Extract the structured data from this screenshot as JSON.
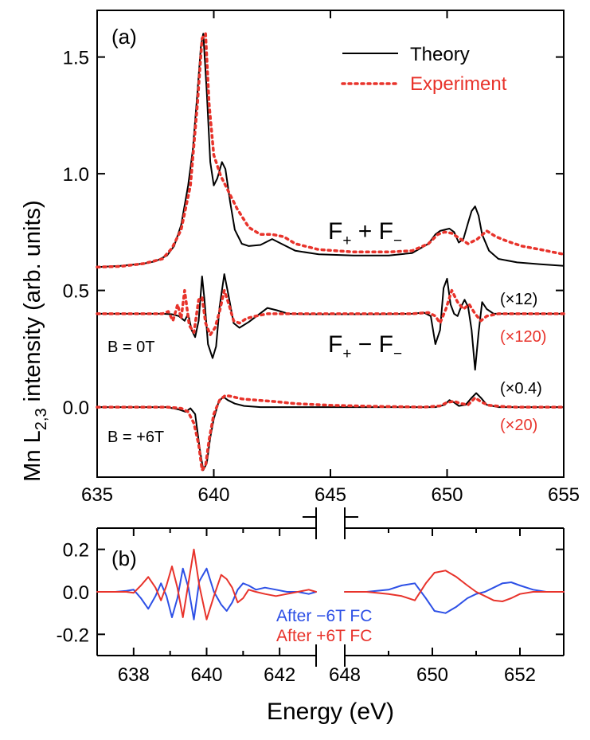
{
  "colors": {
    "theory": "#000000",
    "experiment": "#e8332b",
    "after_minus": "#2d50e6",
    "after_plus": "#e8332b",
    "axis": "#000000"
  },
  "ylabel": {
    "main": "Mn L",
    "sub": "2,3",
    "rest": " intensity (arb. units)"
  },
  "xlabel": "Energy (eV)",
  "chart_data": [
    {
      "type": "line",
      "panel_label": "(a)",
      "xlim": [
        635,
        655
      ],
      "ylim": [
        -0.3,
        1.7
      ],
      "x_ticks": [
        635,
        640,
        645,
        650,
        655
      ],
      "y_ticks": [
        0.0,
        0.5,
        1.0,
        1.5
      ],
      "y_tick_labels": [
        "0.0",
        "0.5",
        "1.0",
        "1.5"
      ],
      "legend": {
        "placement": "top-right",
        "entries": [
          {
            "name": "Theory",
            "style": "solid",
            "color": "#000000"
          },
          {
            "name": "Experiment",
            "style": "dotted",
            "color": "#e8332b"
          }
        ]
      },
      "annotations": {
        "sum_label": {
          "main": "F",
          "s1": "+",
          "op": " + F",
          "s2": "−"
        },
        "diff_label": {
          "main": "F",
          "s1": "+",
          "op": " − F",
          "s2": "−"
        },
        "b0": "B = 0T",
        "b6": "B = +6T",
        "scale_theory_0": "(×12)",
        "scale_exp_0": "(×120)",
        "scale_theory_6": "(×0.4)",
        "scale_exp_6": "(×20)"
      },
      "series": [
        {
          "group": "sum",
          "style": "theory",
          "x": [
            635.0,
            636.0,
            637.0,
            637.5,
            638.0,
            638.3,
            638.6,
            638.9,
            639.1,
            639.3,
            639.45,
            639.55,
            639.7,
            639.85,
            640.0,
            640.15,
            640.35,
            640.5,
            640.7,
            640.9,
            641.2,
            641.5,
            642.0,
            642.5,
            643.0,
            643.5,
            644.5,
            646.0,
            647.5,
            648.5,
            649.2,
            649.5,
            649.7,
            649.9,
            650.1,
            650.3,
            650.5,
            650.7,
            650.9,
            651.05,
            651.2,
            651.35,
            651.5,
            651.8,
            652.2,
            653.0,
            654.0,
            655.0
          ],
          "y": [
            0.6,
            0.605,
            0.615,
            0.625,
            0.65,
            0.69,
            0.78,
            0.95,
            1.1,
            1.35,
            1.55,
            1.6,
            1.35,
            1.05,
            0.95,
            0.98,
            1.05,
            1.02,
            0.88,
            0.76,
            0.7,
            0.69,
            0.695,
            0.72,
            0.695,
            0.67,
            0.655,
            0.65,
            0.65,
            0.66,
            0.7,
            0.74,
            0.755,
            0.76,
            0.765,
            0.75,
            0.705,
            0.72,
            0.79,
            0.84,
            0.86,
            0.82,
            0.74,
            0.67,
            0.635,
            0.62,
            0.612,
            0.605
          ]
        },
        {
          "group": "sum",
          "style": "experiment",
          "x": [
            635.0,
            636.0,
            637.0,
            637.8,
            638.2,
            638.6,
            639.0,
            639.3,
            639.5,
            639.65,
            639.8,
            640.0,
            640.3,
            640.6,
            641.0,
            641.5,
            642.0,
            642.5,
            643.0,
            643.5,
            644.5,
            646.0,
            647.5,
            648.5,
            649.2,
            649.6,
            649.9,
            650.2,
            650.5,
            650.9,
            651.3,
            651.7,
            652.1,
            652.6,
            653.2,
            654.0,
            655.0
          ],
          "y": [
            0.6,
            0.603,
            0.615,
            0.635,
            0.68,
            0.76,
            0.95,
            1.3,
            1.58,
            1.6,
            1.3,
            1.08,
            0.99,
            0.93,
            0.85,
            0.77,
            0.74,
            0.74,
            0.73,
            0.7,
            0.675,
            0.665,
            0.665,
            0.67,
            0.7,
            0.74,
            0.75,
            0.745,
            0.725,
            0.7,
            0.72,
            0.755,
            0.73,
            0.71,
            0.69,
            0.675,
            0.655
          ]
        },
        {
          "group": "diff_0T",
          "style": "theory",
          "x": [
            635.0,
            636.0,
            637.0,
            637.8,
            638.2,
            638.5,
            638.75,
            638.9,
            639.05,
            639.2,
            639.35,
            639.5,
            639.6,
            639.75,
            639.95,
            640.1,
            640.25,
            640.45,
            640.65,
            640.85,
            641.1,
            641.5,
            641.9,
            642.3,
            642.7,
            643.2,
            644.0,
            645.5,
            647.0,
            648.5,
            649.0,
            649.3,
            649.5,
            649.7,
            649.85,
            650.0,
            650.15,
            650.3,
            650.45,
            650.6,
            650.75,
            650.9,
            651.05,
            651.2,
            651.35,
            651.5,
            651.7,
            652.0,
            652.5,
            653.5,
            655.0
          ],
          "y": [
            0.4,
            0.4,
            0.4,
            0.4,
            0.398,
            0.39,
            0.37,
            0.4,
            0.33,
            0.3,
            0.37,
            0.56,
            0.46,
            0.27,
            0.21,
            0.26,
            0.43,
            0.57,
            0.47,
            0.36,
            0.34,
            0.365,
            0.395,
            0.425,
            0.415,
            0.4,
            0.398,
            0.398,
            0.398,
            0.4,
            0.405,
            0.39,
            0.27,
            0.33,
            0.51,
            0.55,
            0.44,
            0.4,
            0.39,
            0.43,
            0.46,
            0.43,
            0.33,
            0.16,
            0.32,
            0.45,
            0.42,
            0.4,
            0.4,
            0.4,
            0.4
          ]
        },
        {
          "group": "diff_0T",
          "style": "experiment",
          "x": [
            635.0,
            636.0,
            637.0,
            637.8,
            638.05,
            638.25,
            638.45,
            638.6,
            638.75,
            638.95,
            639.15,
            639.35,
            639.5,
            639.65,
            639.85,
            640.05,
            640.25,
            640.45,
            640.65,
            640.85,
            641.1,
            641.4,
            641.8,
            642.3,
            643.0,
            644.0,
            645.5,
            647.0,
            648.5,
            649.2,
            649.5,
            649.7,
            649.95,
            650.2,
            650.45,
            650.7,
            650.95,
            651.2,
            651.45,
            651.7,
            652.2,
            653.0,
            655.0
          ],
          "y": [
            0.4,
            0.4,
            0.4,
            0.4,
            0.41,
            0.37,
            0.44,
            0.38,
            0.5,
            0.35,
            0.32,
            0.46,
            0.47,
            0.36,
            0.31,
            0.34,
            0.41,
            0.5,
            0.44,
            0.37,
            0.36,
            0.38,
            0.39,
            0.4,
            0.4,
            0.4,
            0.4,
            0.4,
            0.4,
            0.405,
            0.39,
            0.36,
            0.42,
            0.5,
            0.45,
            0.42,
            0.44,
            0.4,
            0.37,
            0.39,
            0.4,
            0.4,
            0.4
          ]
        },
        {
          "group": "diff_6T",
          "style": "theory",
          "x": [
            635.0,
            636.0,
            637.0,
            638.0,
            638.5,
            638.8,
            639.0,
            639.2,
            639.4,
            639.55,
            639.7,
            639.85,
            640.0,
            640.2,
            640.4,
            640.6,
            640.9,
            641.3,
            642.0,
            643.0,
            644.5,
            646.0,
            648.0,
            649.5,
            649.9,
            650.1,
            650.3,
            650.5,
            650.8,
            651.05,
            651.25,
            651.45,
            651.7,
            652.2,
            653.0,
            655.0
          ],
          "y": [
            0.0,
            0.0,
            0.0,
            0.0,
            -0.01,
            -0.02,
            -0.005,
            -0.03,
            -0.18,
            -0.27,
            -0.24,
            -0.13,
            -0.05,
            0.02,
            0.045,
            0.03,
            0.015,
            0.005,
            0.0,
            0.0,
            0.0,
            0.0,
            0.0,
            0.0,
            0.01,
            0.03,
            0.02,
            0.005,
            0.01,
            0.04,
            0.06,
            0.04,
            0.01,
            0.0,
            0.0,
            0.0
          ]
        },
        {
          "group": "diff_6T",
          "style": "experiment",
          "x": [
            635.0,
            636.0,
            637.0,
            638.0,
            638.6,
            638.9,
            639.15,
            639.35,
            639.5,
            639.65,
            639.8,
            640.0,
            640.25,
            640.5,
            640.8,
            641.2,
            641.8,
            642.5,
            643.5,
            645.0,
            647.0,
            649.0,
            649.7,
            650.0,
            650.3,
            650.6,
            650.9,
            651.2,
            651.5,
            651.8,
            652.3,
            653.0,
            655.0
          ],
          "y": [
            0.0,
            0.0,
            0.0,
            0.0,
            -0.005,
            -0.02,
            -0.07,
            -0.16,
            -0.27,
            -0.25,
            -0.14,
            -0.03,
            0.03,
            0.05,
            0.045,
            0.035,
            0.03,
            0.025,
            0.015,
            0.008,
            0.003,
            0.0,
            0.005,
            0.02,
            0.025,
            0.015,
            0.01,
            0.04,
            0.02,
            0.008,
            0.003,
            0.0,
            0.0
          ]
        }
      ]
    },
    {
      "type": "line",
      "panel_label": "(b)",
      "x_segments": [
        [
          637,
          643
        ],
        [
          648,
          653
        ]
      ],
      "ylim": [
        -0.3,
        0.3
      ],
      "x_ticks_left": [
        638,
        640,
        642
      ],
      "x_ticks_right": [
        648,
        650,
        652
      ],
      "y_ticks": [
        -0.2,
        0.0,
        0.2
      ],
      "y_tick_labels": [
        "-0.2",
        "0.0",
        "0.2"
      ],
      "legend": {
        "placement": "bottom-center",
        "entries": [
          {
            "name": "After −6T FC",
            "color": "#2d50e6"
          },
          {
            "name": "After +6T FC",
            "color": "#e8332b"
          }
        ]
      },
      "series": [
        {
          "name": "After −6T FC",
          "x": [
            637.0,
            637.5,
            637.8,
            638.0,
            638.2,
            638.4,
            638.6,
            638.75,
            638.9,
            639.05,
            639.2,
            639.35,
            639.5,
            639.65,
            639.8,
            640.0,
            640.2,
            640.4,
            640.55,
            640.7,
            640.85,
            641.0,
            641.15,
            641.35,
            641.6,
            641.9,
            642.2,
            642.5,
            642.8,
            643.0,
            648.0,
            648.5,
            649.0,
            649.3,
            649.6,
            649.85,
            650.05,
            650.3,
            650.55,
            650.8,
            651.0,
            651.2,
            651.4,
            651.6,
            651.8,
            652.0,
            652.3,
            652.6,
            653.0
          ],
          "y": [
            0.0,
            0.0,
            0.005,
            0.01,
            -0.03,
            -0.08,
            -0.02,
            0.04,
            -0.02,
            -0.12,
            -0.03,
            0.11,
            0.02,
            -0.13,
            0.05,
            0.11,
            0.0,
            -0.06,
            -0.09,
            -0.05,
            0.01,
            0.04,
            0.03,
            0.01,
            0.02,
            0.01,
            0.0,
            0.0,
            -0.01,
            0.0,
            0.0,
            0.0,
            0.01,
            0.03,
            0.04,
            -0.03,
            -0.09,
            -0.1,
            -0.07,
            -0.03,
            -0.01,
            0.0,
            0.02,
            0.04,
            0.045,
            0.03,
            0.01,
            0.0,
            0.0
          ]
        },
        {
          "name": "After +6T FC",
          "x": [
            637.0,
            637.5,
            637.8,
            638.0,
            638.2,
            638.4,
            638.6,
            638.75,
            638.9,
            639.05,
            639.2,
            639.35,
            639.5,
            639.65,
            639.8,
            640.0,
            640.2,
            640.4,
            640.55,
            640.7,
            640.85,
            641.0,
            641.15,
            641.35,
            641.6,
            641.9,
            642.2,
            642.5,
            642.8,
            643.0,
            648.0,
            648.5,
            649.0,
            649.3,
            649.6,
            649.85,
            650.05,
            650.3,
            650.55,
            650.8,
            651.0,
            651.2,
            651.4,
            651.6,
            651.8,
            652.0,
            652.3,
            652.6,
            653.0
          ],
          "y": [
            0.0,
            0.0,
            0.0,
            -0.005,
            0.03,
            0.07,
            0.02,
            -0.04,
            0.03,
            0.12,
            0.02,
            -0.12,
            0.04,
            0.2,
            0.03,
            -0.13,
            -0.02,
            0.08,
            0.06,
            0.02,
            -0.05,
            -0.03,
            0.01,
            0.0,
            -0.01,
            -0.02,
            -0.01,
            0.0,
            0.01,
            0.0,
            0.0,
            0.0,
            -0.01,
            -0.02,
            -0.04,
            0.04,
            0.09,
            0.1,
            0.07,
            0.03,
            0.0,
            -0.02,
            -0.04,
            -0.045,
            -0.03,
            -0.01,
            0.0,
            0.0,
            0.0
          ]
        }
      ]
    }
  ]
}
